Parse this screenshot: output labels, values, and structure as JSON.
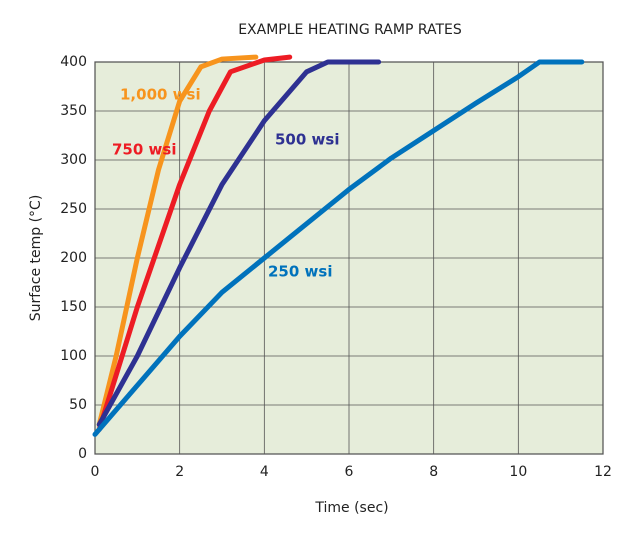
{
  "chart_data": {
    "type": "line",
    "title": "EXAMPLE HEATING RAMP RATES",
    "x_label": "Time (sec)",
    "y_label": "Surface temp (°C)",
    "xlim": [
      0,
      12
    ],
    "xticks": [
      0,
      2,
      4,
      6,
      8,
      10,
      12
    ],
    "ylim": [
      0,
      400
    ],
    "yticks": [
      0,
      50,
      100,
      150,
      200,
      250,
      300,
      350,
      400
    ],
    "grid": true,
    "series": [
      {
        "name": "1,000 wsi",
        "color": "#f7941d",
        "x": [
          0.1,
          0.5,
          1,
          1.5,
          2,
          2.5,
          3,
          3.8
        ],
        "values": [
          30,
          100,
          200,
          290,
          360,
          395,
          403,
          405
        ]
      },
      {
        "name": "750 wsi",
        "color": "#ed1c24",
        "x": [
          0.1,
          1,
          2,
          2.7,
          3.2,
          4,
          4.6
        ],
        "values": [
          25,
          150,
          275,
          350,
          390,
          402,
          405
        ]
      },
      {
        "name": "500 wsi",
        "color": "#2e3192",
        "x": [
          0.1,
          1,
          2,
          3,
          4,
          5,
          5.5,
          6.7
        ],
        "values": [
          30,
          100,
          190,
          275,
          340,
          390,
          400,
          400
        ]
      },
      {
        "name": "250 wsi",
        "color": "#0072bc",
        "x": [
          0,
          1,
          2,
          3,
          4,
          5,
          6,
          7,
          8,
          9,
          10,
          10.5,
          11.5
        ],
        "values": [
          20,
          70,
          120,
          165,
          200,
          235,
          270,
          302,
          330,
          358,
          385,
          400,
          400
        ]
      }
    ]
  }
}
